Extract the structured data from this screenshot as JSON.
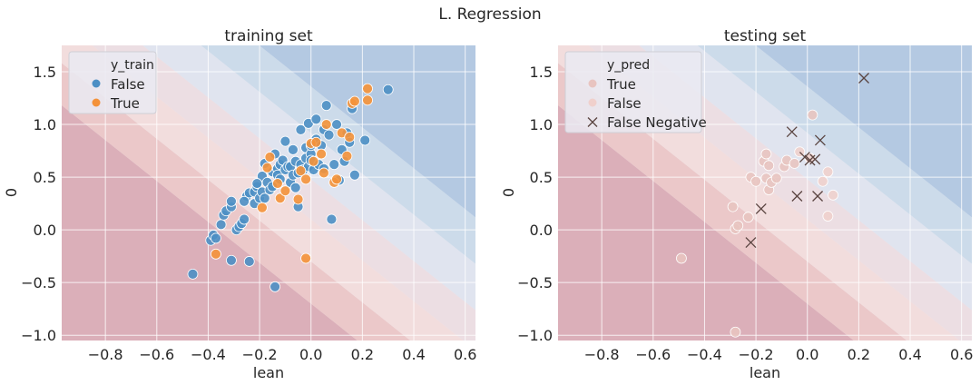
{
  "figure": {
    "suptitle": "L. Regression"
  },
  "colors": {
    "axes_bg": "#eaeaf2",
    "grid": "#ffffff",
    "false_point": "#4c8fc4",
    "true_point": "#f4923a",
    "pred_true": "#e8c4c0",
    "pred_false": "#f0d0cc",
    "false_negative": "#5a4440",
    "legend_edge": "#cfcfd6"
  },
  "chart_data": [
    {
      "type": "scatter",
      "title": "training set",
      "xlabel": "lean",
      "ylabel": "0",
      "xlim": [
        -0.97,
        0.64
      ],
      "ylim": [
        -1.05,
        1.75
      ],
      "xticks": [
        -0.8,
        -0.6,
        -0.4,
        -0.2,
        0.0,
        0.2,
        0.4,
        0.6
      ],
      "xtick_labels": [
        "−0.8",
        "−0.6",
        "−0.4",
        "−0.2",
        "0.0",
        "0.2",
        "0.4",
        "0.6"
      ],
      "yticks": [
        -1.0,
        -0.5,
        0.0,
        0.5,
        1.0,
        1.5
      ],
      "ytick_labels": [
        "−1.0",
        "−0.5",
        "0.0",
        "0.5",
        "1.0",
        "1.5"
      ],
      "grid": true,
      "legend": {
        "title": "y_train",
        "placement": "top-left",
        "entries": [
          {
            "label": "False",
            "marker": "dot-blue"
          },
          {
            "label": "True",
            "marker": "dot-orange"
          }
        ]
      },
      "series": [
        {
          "name": "False",
          "points": [
            [
              -0.46,
              -0.42
            ],
            [
              -0.39,
              -0.1
            ],
            [
              -0.38,
              -0.05
            ],
            [
              -0.37,
              -0.08
            ],
            [
              -0.35,
              0.05
            ],
            [
              -0.34,
              0.14
            ],
            [
              -0.33,
              0.18
            ],
            [
              -0.31,
              0.22
            ],
            [
              -0.31,
              0.27
            ],
            [
              -0.31,
              -0.29
            ],
            [
              -0.29,
              0.0
            ],
            [
              -0.28,
              0.03
            ],
            [
              -0.27,
              0.06
            ],
            [
              -0.26,
              0.1
            ],
            [
              -0.24,
              -0.3
            ],
            [
              -0.25,
              0.32
            ],
            [
              -0.24,
              0.35
            ],
            [
              -0.22,
              0.36
            ],
            [
              -0.22,
              0.25
            ],
            [
              -0.21,
              0.41
            ],
            [
              -0.2,
              0.3
            ],
            [
              -0.19,
              0.51
            ],
            [
              -0.19,
              0.36
            ],
            [
              -0.18,
              0.63
            ],
            [
              -0.18,
              0.3
            ],
            [
              -0.17,
              0.45
            ],
            [
              -0.16,
              0.38
            ],
            [
              -0.15,
              0.55
            ],
            [
              -0.15,
              0.41
            ],
            [
              -0.14,
              0.72
            ],
            [
              -0.14,
              -0.54
            ],
            [
              -0.13,
              0.58
            ],
            [
              -0.13,
              0.52
            ],
            [
              -0.12,
              0.48
            ],
            [
              -0.12,
              0.62
            ],
            [
              -0.11,
              0.66
            ],
            [
              -0.1,
              0.57
            ],
            [
              -0.1,
              0.84
            ],
            [
              -0.09,
              0.6
            ],
            [
              -0.08,
              0.45
            ],
            [
              -0.08,
              0.6
            ],
            [
              -0.07,
              0.52
            ],
            [
              -0.07,
              0.76
            ],
            [
              -0.06,
              0.65
            ],
            [
              -0.05,
              0.54
            ],
            [
              -0.05,
              0.22
            ],
            [
              -0.04,
              0.62
            ],
            [
              -0.04,
              0.95
            ],
            [
              -0.03,
              0.57
            ],
            [
              -0.02,
              0.78
            ],
            [
              -0.02,
              0.68
            ],
            [
              -0.01,
              1.01
            ],
            [
              -0.01,
              0.6
            ],
            [
              0.0,
              0.72
            ],
            [
              0.0,
              0.66
            ],
            [
              0.01,
              0.57
            ],
            [
              0.02,
              1.05
            ],
            [
              0.02,
              0.86
            ],
            [
              0.03,
              0.62
            ],
            [
              0.04,
              0.8
            ],
            [
              0.05,
              0.95
            ],
            [
              0.05,
              0.58
            ],
            [
              0.06,
              1.18
            ],
            [
              0.07,
              0.9
            ],
            [
              0.08,
              0.1
            ],
            [
              0.09,
              0.62
            ],
            [
              0.1,
              1.0
            ],
            [
              0.13,
              0.65
            ],
            [
              0.15,
              0.83
            ],
            [
              0.16,
              1.15
            ],
            [
              0.17,
              0.52
            ],
            [
              0.21,
              0.85
            ],
            [
              0.3,
              1.33
            ],
            [
              0.0,
              0.8
            ],
            [
              -0.06,
              0.4
            ],
            [
              0.11,
              0.47
            ],
            [
              0.12,
              0.76
            ],
            [
              0.14,
              0.92
            ],
            [
              -0.21,
              0.44
            ],
            [
              -0.26,
              0.27
            ]
          ]
        },
        {
          "name": "True",
          "points": [
            [
              -0.37,
              -0.23
            ],
            [
              -0.19,
              0.21
            ],
            [
              -0.17,
              0.59
            ],
            [
              -0.16,
              0.69
            ],
            [
              -0.13,
              0.44
            ],
            [
              -0.12,
              0.3
            ],
            [
              -0.1,
              0.37
            ],
            [
              -0.05,
              0.29
            ],
            [
              -0.04,
              0.56
            ],
            [
              -0.02,
              -0.27
            ],
            [
              -0.02,
              0.48
            ],
            [
              0.0,
              0.82
            ],
            [
              0.01,
              0.65
            ],
            [
              0.02,
              0.83
            ],
            [
              0.04,
              0.72
            ],
            [
              0.05,
              0.54
            ],
            [
              0.06,
              1.0
            ],
            [
              0.09,
              0.45
            ],
            [
              0.1,
              0.48
            ],
            [
              0.12,
              0.92
            ],
            [
              0.14,
              0.7
            ],
            [
              0.15,
              0.88
            ],
            [
              0.16,
              1.2
            ],
            [
              0.17,
              1.22
            ],
            [
              0.22,
              1.23
            ],
            [
              0.22,
              1.34
            ]
          ]
        }
      ]
    },
    {
      "type": "scatter",
      "title": "testing set",
      "xlabel": "lean",
      "ylabel": "0",
      "xlim": [
        -0.97,
        0.64
      ],
      "ylim": [
        -1.05,
        1.75
      ],
      "xticks": [
        -0.8,
        -0.6,
        -0.4,
        -0.2,
        0.0,
        0.2,
        0.4,
        0.6
      ],
      "xtick_labels": [
        "−0.8",
        "−0.6",
        "−0.4",
        "−0.2",
        "0.0",
        "0.2",
        "0.4",
        "0.6"
      ],
      "yticks": [
        -1.0,
        -0.5,
        0.0,
        0.5,
        1.0,
        1.5
      ],
      "ytick_labels": [
        "−1.0",
        "−0.5",
        "0.0",
        "0.5",
        "1.0",
        "1.5"
      ],
      "grid": true,
      "legend": {
        "title": "y_pred",
        "placement": "top-left",
        "entries": [
          {
            "label": "True",
            "marker": "dot-pink"
          },
          {
            "label": "False",
            "marker": "dot-pink-light"
          },
          {
            "label": "False Negative",
            "marker": "x"
          }
        ]
      },
      "series": [
        {
          "name": "True",
          "points": [
            [
              -0.49,
              -0.27
            ],
            [
              -0.29,
              0.22
            ],
            [
              -0.28,
              -0.97
            ],
            [
              -0.28,
              0.01
            ],
            [
              -0.27,
              0.04
            ],
            [
              -0.23,
              0.12
            ],
            [
              -0.22,
              0.5
            ],
            [
              -0.2,
              0.46
            ],
            [
              -0.17,
              0.65
            ],
            [
              -0.16,
              0.72
            ],
            [
              -0.16,
              0.49
            ],
            [
              -0.15,
              0.61
            ],
            [
              -0.15,
              0.38
            ],
            [
              -0.14,
              0.45
            ],
            [
              -0.12,
              0.49
            ],
            [
              -0.09,
              0.6
            ],
            [
              -0.08,
              0.66
            ],
            [
              -0.05,
              0.63
            ],
            [
              0.02,
              1.09
            ]
          ]
        },
        {
          "name": "False",
          "points": [
            [
              0.06,
              0.46
            ],
            [
              0.08,
              0.55
            ],
            [
              0.08,
              0.13
            ],
            [
              0.1,
              0.33
            ],
            [
              -0.03,
              0.74
            ],
            [
              0.01,
              0.68
            ]
          ]
        },
        {
          "name": "False Negative",
          "points": [
            [
              -0.22,
              -0.12
            ],
            [
              -0.18,
              0.2
            ],
            [
              -0.06,
              0.93
            ],
            [
              -0.04,
              0.32
            ],
            [
              -0.01,
              0.69
            ],
            [
              0.01,
              0.66
            ],
            [
              0.03,
              0.67
            ],
            [
              0.04,
              0.32
            ],
            [
              0.05,
              0.85
            ],
            [
              0.22,
              1.44
            ]
          ]
        }
      ]
    }
  ]
}
